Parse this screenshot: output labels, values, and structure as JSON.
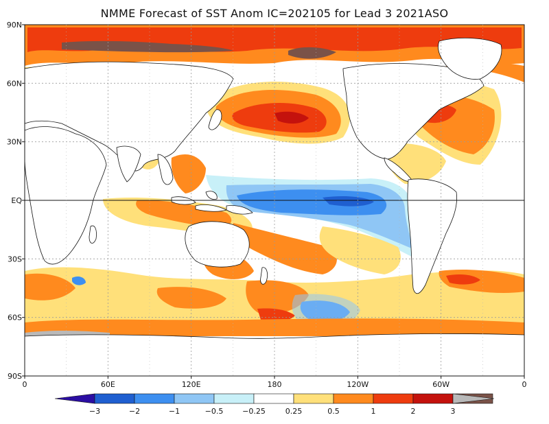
{
  "title": "NMME Forecast of SST Anom IC=202105 for Lead 3 2021ASO",
  "lat_labels": [
    "90N",
    "60N",
    "30N",
    "EQ",
    "30S",
    "60S",
    "90S"
  ],
  "lon_labels": [
    "0",
    "60E",
    "120E",
    "180",
    "120W",
    "60W",
    "0"
  ],
  "legend": {
    "labels": [
      "−3",
      "−2",
      "−1",
      "−0.5",
      "−0.25",
      "0.25",
      "0.5",
      "1",
      "2",
      "3"
    ],
    "colors": [
      "#2b0ea3",
      "#1f5fd0",
      "#3d8ff0",
      "#8fc6f5",
      "#c8f0f8",
      "#ffffff",
      "#ffe07a",
      "#ff8a1e",
      "#ee3c0e",
      "#c4120d",
      "#7a5248",
      "#b9b9b9"
    ]
  },
  "colors": {
    "land": "#ffffff",
    "coast": "#111111",
    "grid": "#999999"
  }
}
